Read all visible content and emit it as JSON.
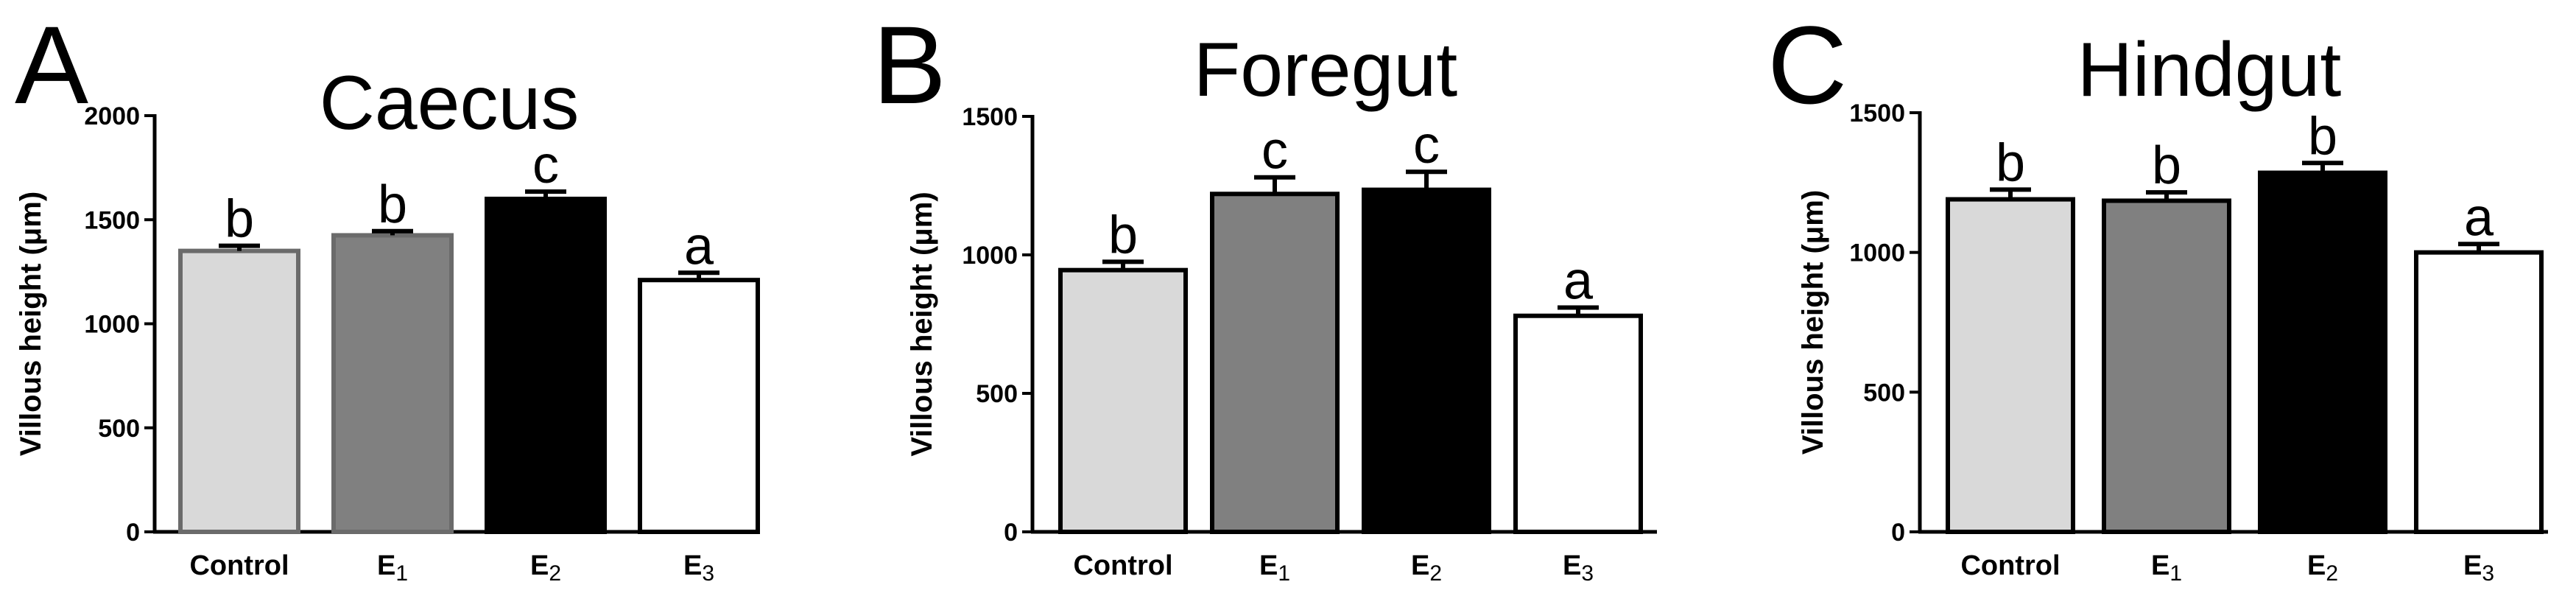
{
  "chart_data": [
    {
      "type": "bar",
      "panel": "A",
      "title": "Caecus",
      "ylabel": "Villous height (μm)",
      "ylim": [
        0,
        2000
      ],
      "yticks": [
        0,
        500,
        1000,
        1500,
        2000
      ],
      "categories": [
        "Control",
        "E1",
        "E2",
        "E3"
      ],
      "values": [
        1350,
        1425,
        1600,
        1210
      ],
      "errors": [
        25,
        20,
        35,
        35
      ],
      "significance": [
        "b",
        "b",
        "c",
        "a"
      ],
      "colors": [
        "#d9d9d9",
        "#808080",
        "#000000",
        "#ffffff"
      ]
    },
    {
      "type": "bar",
      "panel": "B",
      "title": "Foregut",
      "ylabel": "Villous height (μm)",
      "ylim": [
        0,
        1500
      ],
      "yticks": [
        0,
        500,
        1000,
        1500
      ],
      "categories": [
        "Control",
        "E1",
        "E2",
        "E3"
      ],
      "values": [
        945,
        1220,
        1235,
        780
      ],
      "errors": [
        30,
        60,
        65,
        30
      ],
      "significance": [
        "b",
        "c",
        "c",
        "a"
      ],
      "colors": [
        "#d9d9d9",
        "#808080",
        "#000000",
        "#ffffff"
      ]
    },
    {
      "type": "bar",
      "panel": "C",
      "title": "Hindgut",
      "ylabel": "Villous height (μm)",
      "ylim": [
        0,
        1500
      ],
      "yticks": [
        0,
        500,
        1000,
        1500
      ],
      "categories": [
        "Control",
        "E1",
        "E2",
        "E3"
      ],
      "values": [
        1190,
        1185,
        1285,
        1000
      ],
      "errors": [
        35,
        30,
        35,
        30
      ],
      "significance": [
        "b",
        "b",
        "b",
        "a"
      ],
      "colors": [
        "#d9d9d9",
        "#808080",
        "#000000",
        "#ffffff"
      ]
    }
  ]
}
